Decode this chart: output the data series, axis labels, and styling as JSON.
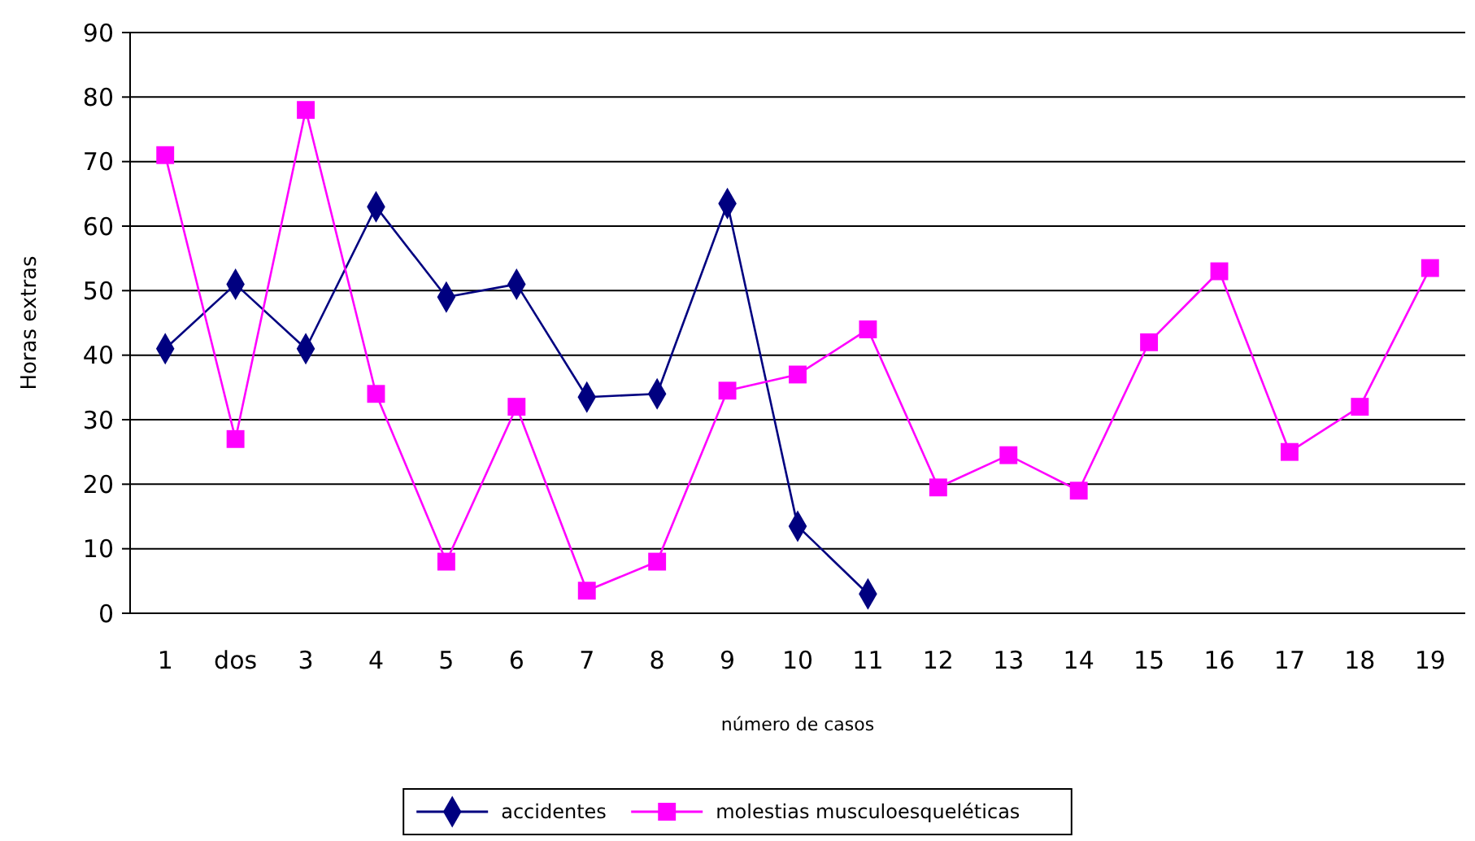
{
  "chart_data": {
    "type": "line",
    "xlabel": "número de casos",
    "ylabel": "Horas extras",
    "categories": [
      "1",
      "dos",
      "3",
      "4",
      "5",
      "6",
      "7",
      "8",
      "9",
      "10",
      "11",
      "12",
      "13",
      "14",
      "15",
      "16",
      "17",
      "18",
      "19"
    ],
    "ylim": [
      0,
      90
    ],
    "yticks": [
      0,
      10,
      20,
      30,
      40,
      50,
      60,
      70,
      80,
      90
    ],
    "grid": "y",
    "legend": "bottom",
    "series": [
      {
        "name": "accidentes",
        "color": "#000080",
        "marker": "diamond",
        "values": [
          41,
          51,
          41,
          63,
          49,
          51,
          33.5,
          34,
          63.5,
          13.5,
          3,
          null,
          null,
          null,
          null,
          null,
          null,
          null,
          null
        ]
      },
      {
        "name": "molestias musculoesqueléticas",
        "color": "#ff00ff",
        "marker": "square",
        "values": [
          71,
          27,
          78,
          34,
          8,
          32,
          3.5,
          8,
          34.5,
          37,
          44,
          19.5,
          24.5,
          19,
          42,
          53,
          25,
          32,
          53.5
        ]
      }
    ]
  }
}
